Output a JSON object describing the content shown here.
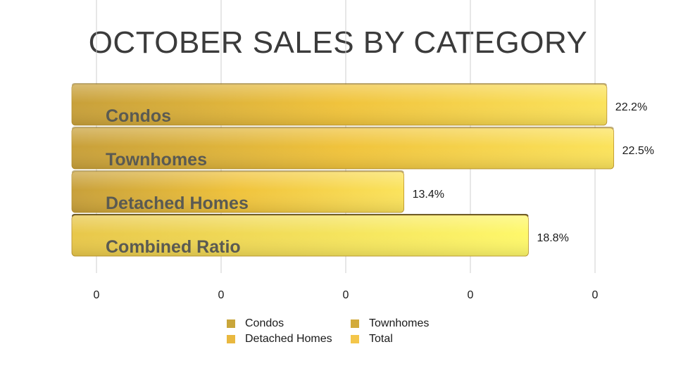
{
  "chart_data": {
    "type": "bar",
    "orientation": "horizontal",
    "title": "OCTOBER SALES BY CATEGORY",
    "categories": [
      "Condos",
      "Townhomes",
      "Detached Homes",
      "Combined Ratio"
    ],
    "values": [
      22.2,
      22.5,
      13.4,
      18.8
    ],
    "value_labels": [
      "22.2%",
      "22.5%",
      "13.4%",
      "18.8%"
    ],
    "x_tick_labels": [
      "0",
      "0",
      "0",
      "0",
      "0"
    ],
    "xlim": [
      -1,
      23
    ],
    "grid": "vertical",
    "legend": {
      "placement": "bottom",
      "entries": [
        {
          "label": "Condos",
          "color": "#c9a63a"
        },
        {
          "label": "Townhomes",
          "color": "#d2ab3b"
        },
        {
          "label": "Detached Homes",
          "color": "#e9b83f"
        },
        {
          "label": "Total",
          "color": "#f4c64a"
        }
      ]
    },
    "colors": {
      "bar_dark": "#c59a2d",
      "bar_mid": "#efc13c",
      "bar_light": "#fbe86a",
      "category_label": "#5a5a52",
      "gridline": "#cfcfcf"
    }
  }
}
